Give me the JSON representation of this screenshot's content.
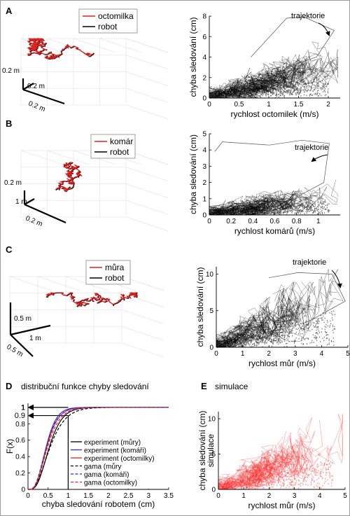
{
  "panels": {
    "A": {
      "letter": "A",
      "legend": {
        "fly": "octomilka",
        "robot": "robot"
      },
      "scales": {
        "vertical": "0.2 m",
        "depth": "0.2 m",
        "horizontal": "0.2 m"
      },
      "trajectory_label": "trajektorie"
    },
    "B": {
      "letter": "B",
      "legend": {
        "fly": "komár",
        "robot": "robot"
      },
      "scales": {
        "vertical": "0.2 m",
        "depth": "1 m",
        "horizontal": "0.2 m"
      },
      "trajectory_label": "trajektorie"
    },
    "C": {
      "letter": "C",
      "legend": {
        "fly": "můra",
        "robot": "robot"
      },
      "scales": {
        "vertical": "0.5 m",
        "depth": "1 m",
        "horizontal": "0.5 m"
      },
      "trajectory_label": "trajektorie"
    },
    "D": {
      "letter": "D",
      "title": "distribuční funkce chyby sledování"
    },
    "E": {
      "letter": "E",
      "title": "simulace"
    }
  },
  "colors": {
    "experiment": "#000000",
    "fly_red": "#e8201c",
    "blue": "#2b2bd6",
    "sim_red": "#ff2a2a",
    "gray_axis": "#666666"
  },
  "chart_data": [
    {
      "id": "A",
      "type": "scatter",
      "xlabel": "rychlost octomilek (m/s)",
      "ylabel": "chyba sledování (cm)",
      "xlim": [
        0,
        2.2
      ],
      "ylim": [
        0,
        8
      ],
      "xticks": [
        "0",
        "0.5",
        "1",
        "1.5",
        "2"
      ],
      "xtick_values": [
        0,
        0.5,
        1,
        1.5,
        2
      ],
      "yticks": [
        "0",
        "2",
        "4",
        "6",
        "8"
      ],
      "ytick_values": [
        0,
        2,
        4,
        6,
        8
      ],
      "trajectory_polyline": [
        [
          0.7,
          4.0
        ],
        [
          1.3,
          7.8
        ],
        [
          1.6,
          7.9
        ],
        [
          2.1,
          6.6
        ],
        [
          1.8,
          4.0
        ],
        [
          1.3,
          3.0
        ]
      ]
    },
    {
      "id": "B",
      "type": "scatter",
      "xlabel": "rychlost komárů (m/s)",
      "ylabel": "chyba sledování (cm)",
      "xlim": [
        0,
        1.2
      ],
      "ylim": [
        0,
        5
      ],
      "xticks": [
        "0",
        "0.2",
        "0.4",
        "0.6",
        "0.8",
        "1"
      ],
      "xtick_values": [
        0,
        0.2,
        0.4,
        0.6,
        0.8,
        1
      ],
      "yticks": [
        "0",
        "1",
        "2",
        "3",
        "4",
        "5"
      ],
      "ytick_values": [
        0,
        1,
        2,
        3,
        4,
        5
      ],
      "trajectory_polyline": [
        [
          0.05,
          3.9
        ],
        [
          0.12,
          4.5
        ],
        [
          0.55,
          4.3
        ],
        [
          0.85,
          4.6
        ],
        [
          1.1,
          4.4
        ],
        [
          1.05,
          2.0
        ],
        [
          0.8,
          1.1
        ]
      ]
    },
    {
      "id": "C",
      "type": "scatter",
      "xlabel": "rychlost můr (m/s)",
      "ylabel": "chyba sledování (cm)",
      "xlim": [
        0,
        5
      ],
      "ylim": [
        0,
        11
      ],
      "xticks": [
        "0",
        "1",
        "2",
        "3",
        "4",
        "5"
      ],
      "xtick_values": [
        0,
        1,
        2,
        3,
        4,
        5
      ],
      "yticks": [
        "0",
        "5",
        "10"
      ],
      "ytick_values": [
        0,
        5,
        10
      ],
      "trajectory_polyline": [
        [
          2.0,
          9.5
        ],
        [
          3.1,
          10.2
        ],
        [
          4.4,
          10.0
        ],
        [
          4.9,
          6.3
        ],
        [
          3.5,
          3.5
        ],
        [
          2.0,
          2.0
        ]
      ]
    },
    {
      "id": "D",
      "type": "line",
      "title": "distribuční funkce chyby sledování",
      "xlabel": "chyba sledování robotem (cm)",
      "ylabel": "F(x)",
      "xlim": [
        0,
        3.5
      ],
      "ylim": [
        0,
        1.05
      ],
      "xticks": [
        "0",
        "0.5",
        "1",
        "1.5",
        "2",
        "2.5",
        "3",
        "3.5"
      ],
      "xtick_values": [
        0,
        0.5,
        1,
        1.5,
        2,
        2.5,
        3,
        3.5
      ],
      "yticks": [
        "0",
        "0.2",
        "0.4",
        "0.6",
        "0.8",
        "1"
      ],
      "ytick_values": [
        0,
        0.2,
        0.4,
        0.6,
        0.8,
        1
      ],
      "marked_levels": [
        {
          "y": 0.9,
          "label": "0.9"
        },
        {
          "y": 1.0,
          "label": "1"
        }
      ],
      "vertical_marker_x": 1.0,
      "series": [
        {
          "name": "experiment (můry)",
          "style": "solid",
          "color": "#000000",
          "shape": 4.5,
          "scale": 0.125
        },
        {
          "name": "experiment (komáři)",
          "style": "solid",
          "color": "#2b2bd6",
          "shape": 5.0,
          "scale": 0.095
        },
        {
          "name": "experiment (octomilky)",
          "style": "solid",
          "color": "#e8201c",
          "shape": 4.5,
          "scale": 0.11
        },
        {
          "name": "gama (můry",
          "style": "dashed",
          "color": "#000000",
          "shape": 3.5,
          "scale": 0.17
        },
        {
          "name": "gama (komáři)",
          "style": "dashed",
          "color": "#2b2bd6",
          "shape": 4.2,
          "scale": 0.115
        },
        {
          "name": "gama (octomilky)",
          "style": "dashed",
          "color": "#e8201c",
          "shape": 4.0,
          "scale": 0.13
        }
      ]
    },
    {
      "id": "E",
      "type": "scatter",
      "title": "simulace",
      "xlabel": "rychlost můr (m/s)",
      "ylabel": "chyba sledování (cm)",
      "ylabel2": "simulace",
      "xlim": [
        0,
        5
      ],
      "ylim": [
        0,
        11
      ],
      "xticks": [
        "0",
        "1",
        "2",
        "3",
        "4",
        "5"
      ],
      "xtick_values": [
        0,
        1,
        2,
        3,
        4,
        5
      ],
      "yticks": [
        "0",
        "5",
        "10"
      ],
      "ytick_values": [
        0,
        5,
        10
      ]
    }
  ]
}
